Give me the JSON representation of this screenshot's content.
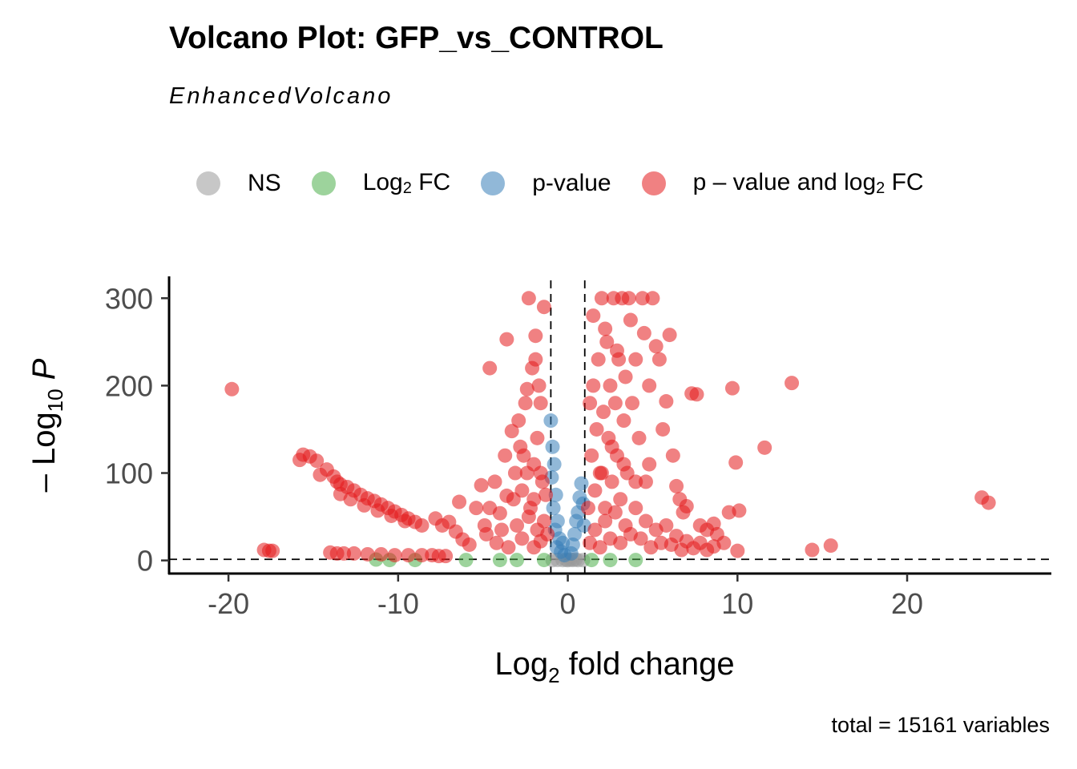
{
  "chart_data": {
    "type": "scatter",
    "title": "Volcano Plot: GFP_vs_CONTROL",
    "subtitle": "EnhancedVolcano",
    "caption": "total = 15161 variables",
    "xlabel": "Log2 fold change",
    "ylabel": "-Log10 P",
    "xlim": [
      -23.5,
      28.5
    ],
    "ylim": [
      -15,
      325
    ],
    "x_ticks": [
      -20,
      -10,
      0,
      10,
      20
    ],
    "x_tick_labels": [
      "-20",
      "-10",
      "0",
      "10",
      "20"
    ],
    "y_ticks": [
      0,
      100,
      200,
      300
    ],
    "y_tick_labels": [
      "0",
      "100",
      "200",
      "300"
    ],
    "thresholds": {
      "log2fc": [
        -1,
        1
      ],
      "neg_log10_p": 1.3
    },
    "legend_position": "top",
    "legend": [
      {
        "key": "NS",
        "color": "#999999"
      },
      {
        "key": "Log2 FC",
        "color": "#4daf4a"
      },
      {
        "key": "p-value",
        "color": "#377eb8"
      },
      {
        "key": "p - value and log2 FC",
        "color": "#e41a1c"
      }
    ],
    "series": [
      {
        "name": "p - value and log2 FC",
        "color": "#e41a1c",
        "points": [
          [
            -19.8,
            196
          ],
          [
            -15.8,
            115
          ],
          [
            -15.6,
            121
          ],
          [
            -15.2,
            119
          ],
          [
            -14.8,
            114
          ],
          [
            -14.6,
            98
          ],
          [
            -14.2,
            104
          ],
          [
            -13.8,
            96
          ],
          [
            -13.6,
            90
          ],
          [
            -13.4,
            87
          ],
          [
            -13.0,
            84
          ],
          [
            -12.6,
            80
          ],
          [
            -12.2,
            75
          ],
          [
            -11.8,
            71
          ],
          [
            -11.4,
            68
          ],
          [
            -11.0,
            64
          ],
          [
            -10.6,
            60
          ],
          [
            -10.2,
            56
          ],
          [
            -9.8,
            52
          ],
          [
            -9.4,
            48
          ],
          [
            -9.0,
            44
          ],
          [
            -8.6,
            40
          ],
          [
            -13.4,
            76
          ],
          [
            -12.8,
            70
          ],
          [
            -12.0,
            63
          ],
          [
            -11.2,
            57
          ],
          [
            -10.4,
            51
          ],
          [
            -9.6,
            45
          ],
          [
            -17.9,
            12
          ],
          [
            -17.6,
            11
          ],
          [
            -17.4,
            11
          ],
          [
            -14.0,
            9
          ],
          [
            -13.6,
            8
          ],
          [
            -13.2,
            8
          ],
          [
            -12.6,
            8
          ],
          [
            -11.8,
            7
          ],
          [
            -11.0,
            7
          ],
          [
            -10.2,
            6
          ],
          [
            -9.4,
            6
          ],
          [
            -8.6,
            6
          ],
          [
            -8.0,
            6
          ],
          [
            -7.6,
            5
          ],
          [
            -7.2,
            5
          ],
          [
            -7.8,
            48
          ],
          [
            -7.4,
            40
          ],
          [
            -7.0,
            44
          ],
          [
            -6.6,
            33
          ],
          [
            -6.2,
            24
          ],
          [
            -5.8,
            18
          ],
          [
            -6.4,
            67
          ],
          [
            -5.4,
            60
          ],
          [
            -5.1,
            86
          ],
          [
            -4.9,
            40
          ],
          [
            -4.6,
            60
          ],
          [
            -4.3,
            90
          ],
          [
            -4.0,
            54
          ],
          [
            -3.7,
            120
          ],
          [
            -3.6,
            74
          ],
          [
            -3.3,
            148
          ],
          [
            -3.1,
            100
          ],
          [
            -2.9,
            160
          ],
          [
            -2.7,
            80
          ],
          [
            -2.6,
            120
          ],
          [
            -2.5,
            180
          ],
          [
            -2.4,
            100
          ],
          [
            -2.3,
            300
          ],
          [
            -2.2,
            60
          ],
          [
            -2.1,
            220
          ],
          [
            -2.0,
            70
          ],
          [
            -1.9,
            257
          ],
          [
            -1.8,
            140
          ],
          [
            -1.7,
            200
          ],
          [
            -1.6,
            180
          ],
          [
            -1.5,
            90
          ],
          [
            -1.4,
            290
          ],
          [
            -1.3,
            75
          ],
          [
            -4.6,
            220
          ],
          [
            -3.6,
            253
          ],
          [
            -2.4,
            196
          ],
          [
            -1.9,
            230
          ],
          [
            -4.8,
            30
          ],
          [
            -4.2,
            20
          ],
          [
            -3.9,
            35
          ],
          [
            -3.5,
            15
          ],
          [
            -3.0,
            40
          ],
          [
            -2.7,
            25
          ],
          [
            -2.3,
            50
          ],
          [
            -2.0,
            15
          ],
          [
            -1.8,
            35
          ],
          [
            -1.6,
            22
          ],
          [
            -1.4,
            45
          ],
          [
            -1.2,
            30
          ],
          [
            -2.0,
            110
          ],
          [
            -2.8,
            130
          ],
          [
            -3.2,
            70
          ],
          [
            -1.6,
            100
          ],
          [
            1.2,
            60
          ],
          [
            1.3,
            180
          ],
          [
            1.4,
            120
          ],
          [
            1.5,
            200
          ],
          [
            1.6,
            80
          ],
          [
            1.7,
            150
          ],
          [
            1.8,
            230
          ],
          [
            1.9,
            100
          ],
          [
            2.0,
            300
          ],
          [
            2.1,
            170
          ],
          [
            2.2,
            60
          ],
          [
            2.3,
            250
          ],
          [
            2.4,
            140
          ],
          [
            2.5,
            200
          ],
          [
            2.6,
            90
          ],
          [
            2.7,
            300
          ],
          [
            2.8,
            180
          ],
          [
            2.9,
            120
          ],
          [
            3.0,
            230
          ],
          [
            3.1,
            70
          ],
          [
            3.2,
            300
          ],
          [
            3.3,
            160
          ],
          [
            3.4,
            210
          ],
          [
            3.5,
            100
          ],
          [
            3.6,
            300
          ],
          [
            3.8,
            180
          ],
          [
            4.0,
            230
          ],
          [
            4.2,
            140
          ],
          [
            4.4,
            300
          ],
          [
            4.6,
            90
          ],
          [
            4.8,
            200
          ],
          [
            5.0,
            300
          ],
          [
            5.2,
            245
          ],
          [
            5.4,
            230
          ],
          [
            5.6,
            150
          ],
          [
            5.8,
            182
          ],
          [
            6.0,
            258
          ],
          [
            6.2,
            120
          ],
          [
            6.4,
            85
          ],
          [
            6.6,
            70
          ],
          [
            6.8,
            55
          ],
          [
            7.0,
            62
          ],
          [
            7.3,
            191
          ],
          [
            7.6,
            190
          ],
          [
            7.8,
            40
          ],
          [
            8.2,
            35
          ],
          [
            8.6,
            42
          ],
          [
            8.8,
            30
          ],
          [
            9.2,
            20
          ],
          [
            9.5,
            55
          ],
          [
            9.7,
            197
          ],
          [
            9.9,
            112
          ],
          [
            10.1,
            57
          ],
          [
            10.0,
            11
          ],
          [
            11.6,
            129
          ],
          [
            13.2,
            203
          ],
          [
            14.4,
            12
          ],
          [
            15.5,
            17
          ],
          [
            24.4,
            72
          ],
          [
            24.8,
            66
          ],
          [
            1.3,
            20
          ],
          [
            1.6,
            35
          ],
          [
            1.9,
            15
          ],
          [
            2.2,
            45
          ],
          [
            2.5,
            25
          ],
          [
            2.8,
            55
          ],
          [
            3.1,
            20
          ],
          [
            3.4,
            40
          ],
          [
            3.7,
            30
          ],
          [
            4.0,
            60
          ],
          [
            4.3,
            25
          ],
          [
            4.6,
            45
          ],
          [
            4.9,
            15
          ],
          [
            5.2,
            35
          ],
          [
            5.5,
            20
          ],
          [
            5.8,
            40
          ],
          [
            6.1,
            18
          ],
          [
            6.4,
            28
          ],
          [
            6.7,
            12
          ],
          [
            7.0,
            22
          ],
          [
            7.4,
            14
          ],
          [
            7.8,
            20
          ],
          [
            8.2,
            12
          ],
          [
            8.6,
            16
          ],
          [
            2.0,
            100
          ],
          [
            2.6,
            130
          ],
          [
            3.3,
            110
          ],
          [
            4.0,
            90
          ],
          [
            4.8,
            110
          ],
          [
            2.2,
            265
          ],
          [
            2.9,
            240
          ],
          [
            3.7,
            275
          ],
          [
            4.5,
            260
          ],
          [
            1.5,
            280
          ]
        ]
      },
      {
        "name": "p-value",
        "color": "#377eb8",
        "points": [
          [
            -1.0,
            160
          ],
          [
            -0.9,
            130
          ],
          [
            -0.8,
            110
          ],
          [
            -0.95,
            95
          ],
          [
            -0.7,
            75
          ],
          [
            -0.85,
            60
          ],
          [
            -0.6,
            45
          ],
          [
            -0.75,
            35
          ],
          [
            -0.5,
            25
          ],
          [
            -0.65,
            15
          ],
          [
            -0.4,
            10
          ],
          [
            -0.3,
            20
          ],
          [
            0.3,
            18
          ],
          [
            0.4,
            30
          ],
          [
            0.5,
            45
          ],
          [
            0.6,
            55
          ],
          [
            0.7,
            72
          ],
          [
            0.8,
            88
          ],
          [
            0.9,
            65
          ],
          [
            0.95,
            40
          ],
          [
            0.2,
            8
          ],
          [
            -0.2,
            6
          ]
        ]
      },
      {
        "name": "Log2 FC",
        "color": "#4daf4a",
        "points": [
          [
            -11.3,
            1
          ],
          [
            -10.5,
            0.5
          ],
          [
            -9.0,
            0.5
          ],
          [
            -6.0,
            0.5
          ],
          [
            -4.0,
            0.5
          ],
          [
            -3.0,
            0.5
          ],
          [
            -1.4,
            0.5
          ],
          [
            1.4,
            0.5
          ],
          [
            2.5,
            0.5
          ],
          [
            4.0,
            0.5
          ]
        ]
      },
      {
        "name": "NS",
        "color": "#999999",
        "points": [
          [
            -0.9,
            0.3
          ],
          [
            -0.6,
            0.5
          ],
          [
            -0.3,
            0.4
          ],
          [
            0.0,
            0.3
          ],
          [
            0.3,
            0.5
          ],
          [
            0.6,
            0.4
          ],
          [
            0.9,
            0.3
          ],
          [
            -0.1,
            0.8
          ],
          [
            0.15,
            0.9
          ],
          [
            0.45,
            1.0
          ]
        ]
      }
    ]
  }
}
